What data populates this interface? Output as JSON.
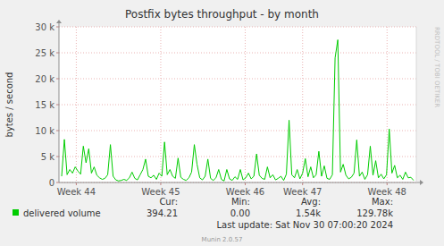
{
  "chart_data": {
    "type": "line",
    "title": "Postfix bytes throughput - by month",
    "y_label": "bytes / second",
    "x": [
      0.25,
      0.5,
      0.75,
      1,
      1.25,
      1.5,
      1.75,
      2,
      2.25,
      2.5,
      2.75,
      3,
      3.25,
      3.5,
      3.75,
      4,
      4.25,
      4.5,
      4.75,
      5,
      5.25,
      5.5,
      5.75,
      6,
      6.25,
      6.5,
      6.75,
      7,
      7.25,
      7.5,
      7.75,
      8,
      8.25,
      8.5,
      8.75,
      9,
      9.25,
      9.5,
      9.75,
      10,
      10.25,
      10.5,
      10.75,
      11,
      11.25,
      11.5,
      11.75,
      12,
      12.25,
      12.5,
      12.75,
      13,
      13.25,
      13.5,
      13.75,
      14,
      14.25,
      14.5,
      14.75,
      15,
      15.25,
      15.5,
      15.75,
      16,
      16.25,
      16.5,
      16.75,
      17,
      17.25,
      17.5,
      17.75,
      18,
      18.25,
      18.5,
      18.75,
      19,
      19.25,
      19.5,
      19.75,
      20,
      20.25,
      20.5,
      20.75,
      21,
      21.25,
      21.5,
      21.75,
      22,
      22.25,
      22.5,
      22.75,
      23,
      23.25,
      23.5,
      23.75,
      24,
      24.25,
      24.5,
      24.75,
      25,
      25.25,
      25.5,
      25.75,
      26,
      26.25,
      26.5,
      26.75,
      27,
      27.25,
      27.5,
      27.75,
      28,
      28.25,
      28.5,
      28.75,
      29,
      29.25,
      29.5,
      29.75,
      30,
      30.25,
      30.5,
      30.75,
      31,
      31.25,
      31.5,
      31.75,
      32,
      32.25,
      32.5,
      32.75
    ],
    "series": [
      {
        "name": "delivered volume",
        "color": "#00cc00",
        "values": [
          1200,
          8300,
          1500,
          2500,
          1800,
          3000,
          2200,
          1600,
          7000,
          3800,
          6500,
          1800,
          3000,
          1400,
          900,
          600,
          800,
          1500,
          7300,
          1200,
          500,
          300,
          400,
          600,
          400,
          900,
          2000,
          800,
          500,
          1500,
          2500,
          4500,
          1200,
          900,
          1400,
          600,
          1800,
          1200,
          7800,
          1500,
          2500,
          1200,
          800,
          4700,
          1000,
          600,
          400,
          900,
          2000,
          7300,
          3500,
          900,
          500,
          1200,
          4500,
          800,
          400,
          900,
          2500,
          600,
          300,
          2500,
          700,
          400,
          1100,
          600,
          2500,
          500,
          900,
          1800,
          700,
          1200,
          5500,
          1400,
          800,
          600,
          3000,
          900,
          1500,
          500,
          800,
          1200,
          400,
          1600,
          12000,
          1500,
          900,
          2500,
          700,
          1800,
          4600,
          1100,
          3000,
          900,
          1500,
          6000,
          1200,
          3200,
          800,
          600,
          1500,
          24000,
          27500,
          2000,
          3500,
          1400,
          700,
          1000,
          1800,
          8200,
          1200,
          2000,
          600,
          1500,
          7000,
          1400,
          4200,
          900,
          1600,
          700,
          1500,
          10300,
          1800,
          3300,
          900,
          1400,
          600,
          2000,
          900,
          1000,
          400
        ]
      }
    ],
    "xlim": [
      0,
      33
    ],
    "xticks": [
      {
        "value": 1.6,
        "label": "Week 44"
      },
      {
        "value": 9.4,
        "label": "Week 45"
      },
      {
        "value": 17.2,
        "label": "Week 46"
      },
      {
        "value": 22.5,
        "label": "Week 47"
      },
      {
        "value": 30.3,
        "label": "Week 48"
      }
    ],
    "ylim": [
      0,
      30000
    ],
    "yticks": [
      0,
      {
        "value": 5000,
        "label": "5 k"
      },
      {
        "value": 10000,
        "label": "10 k"
      },
      {
        "value": 15000,
        "label": "15 k"
      },
      {
        "value": 20000,
        "label": "20 k"
      },
      {
        "value": 25000,
        "label": "25 k"
      },
      {
        "value": 30000,
        "label": "30 k"
      }
    ],
    "grid": true,
    "legend": "bottom",
    "stats": [
      {
        "label": "Cur:",
        "value": "394.21"
      },
      {
        "label": "Min:",
        "value": "0.00"
      },
      {
        "label": "Avg:",
        "value": "1.54k"
      },
      {
        "label": "Max:",
        "value": "129.78k"
      }
    ],
    "last_update": "Last update: Sat Nov 30 07:00:20 2024",
    "footer": "Munin 2.0.57",
    "watermark": "RRDTOOL / TOBI OETIKER"
  }
}
